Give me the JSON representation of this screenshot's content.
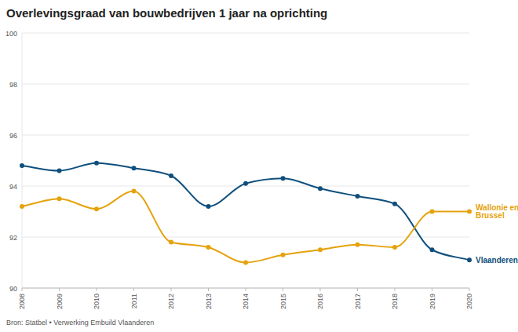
{
  "chart_data": {
    "type": "line",
    "title": "Overlevingsgraad van bouwbedrijven 1 jaar na oprichting",
    "source": "Bron: Statbel • Verwerking Embuild Vlaanderen",
    "x": [
      2008,
      2009,
      2010,
      2011,
      2012,
      2013,
      2014,
      2015,
      2016,
      2017,
      2018,
      2019,
      2020
    ],
    "xlim": [
      2008,
      2020
    ],
    "xticks": [
      2008,
      2009,
      2010,
      2011,
      2012,
      2013,
      2014,
      2015,
      2016,
      2017,
      2018,
      2019,
      2020
    ],
    "ylim": [
      90,
      100
    ],
    "yticks": [
      90,
      92,
      94,
      96,
      98,
      100
    ],
    "grid": true,
    "marker": "circle",
    "series": [
      {
        "name": "Vlaanderen",
        "color": "#0f4f7d",
        "values": [
          94.8,
          94.6,
          94.9,
          94.7,
          94.4,
          93.2,
          94.1,
          94.3,
          93.9,
          93.6,
          93.3,
          91.5,
          91.1
        ]
      },
      {
        "name": "Wallonie en Brussel",
        "color": "#e5a20c",
        "values": [
          93.2,
          93.5,
          93.1,
          93.8,
          91.8,
          91.6,
          91.0,
          91.3,
          91.5,
          91.7,
          91.6,
          93.0,
          93.0
        ]
      }
    ]
  }
}
